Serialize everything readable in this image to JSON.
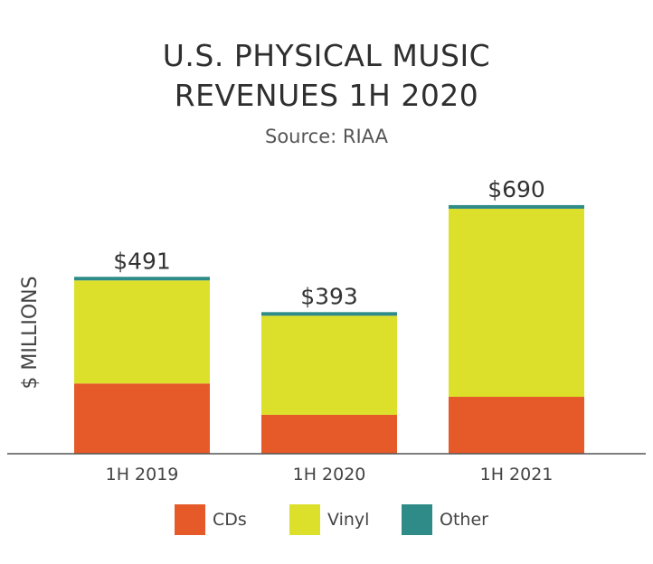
{
  "chart_data": {
    "type": "bar",
    "stacked": true,
    "title_lines": [
      "U.S. PHYSICAL MUSIC",
      "REVENUES 1H 2020"
    ],
    "subtitle": "Source: RIAA",
    "ylabel": "$ MILLIONS",
    "xlabel": "",
    "categories": [
      "1H 2019",
      "1H 2020",
      "1H 2021"
    ],
    "series": [
      {
        "name": "CDs",
        "color": "#e55a28",
        "values": [
          195,
          108,
          158
        ]
      },
      {
        "name": "Vinyl",
        "color": "#dde02a",
        "values": [
          286,
          275,
          522
        ]
      },
      {
        "name": "Other",
        "color": "#2e8b87",
        "values": [
          10,
          10,
          10
        ]
      }
    ],
    "totals": [
      "$491",
      "$393",
      "$690"
    ],
    "ylim": [
      0,
      740
    ],
    "grid": false,
    "legend": "bottom"
  }
}
